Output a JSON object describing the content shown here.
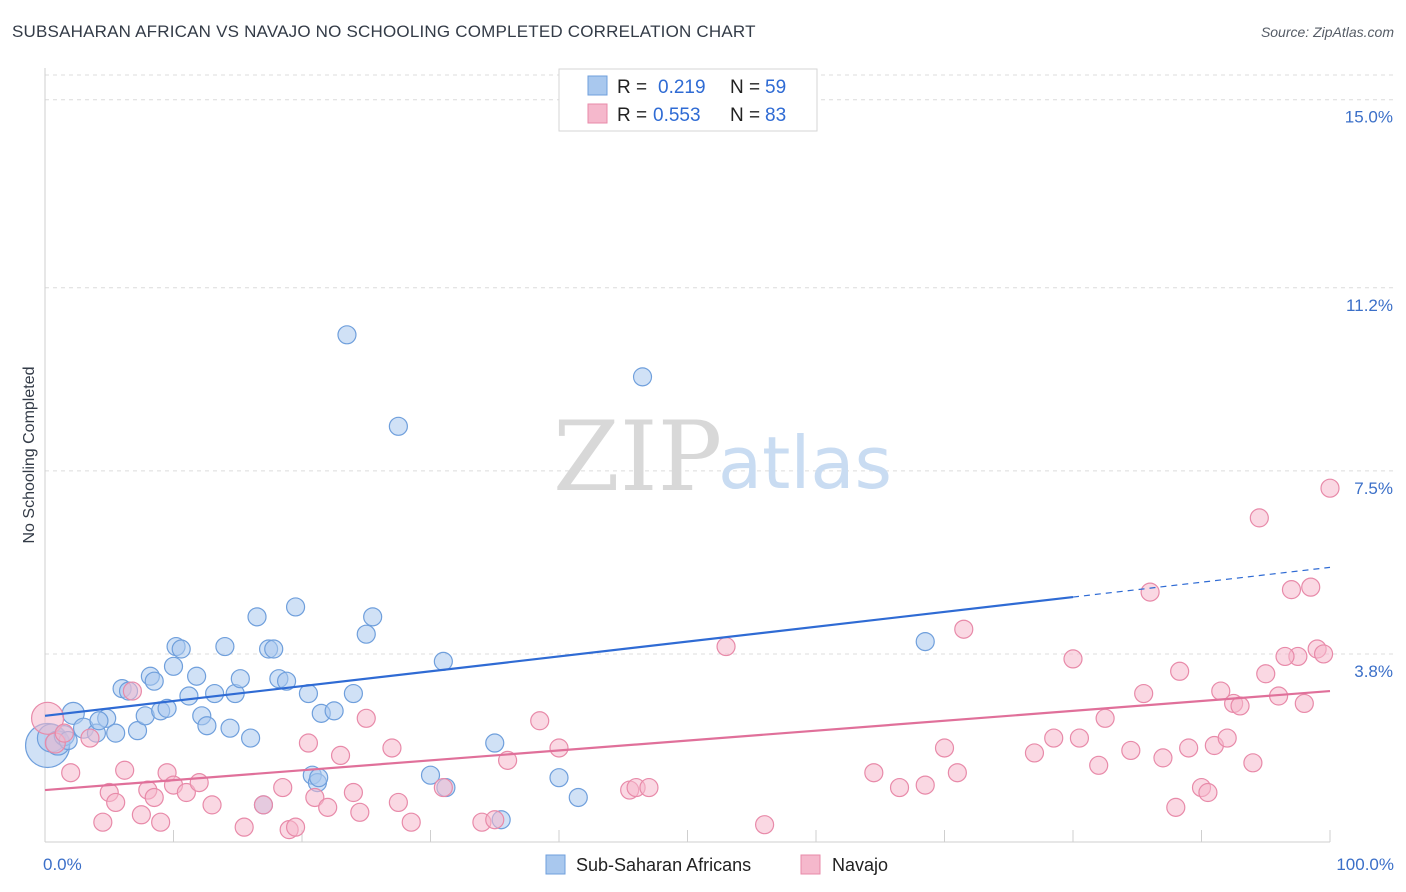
{
  "header": {
    "title": "SUBSAHARAN AFRICAN VS NAVAJO NO SCHOOLING COMPLETED CORRELATION CHART",
    "source": "Source: ZipAtlas.com"
  },
  "watermark": {
    "zip": "ZIP",
    "atlas": "atlas"
  },
  "legend": {
    "rows": [
      {
        "r_label": "R =",
        "r_value": "0.219",
        "n_label": "N =",
        "n_value": "59"
      },
      {
        "r_label": "R =",
        "r_value": "0.553",
        "n_label": "N =",
        "n_value": "83"
      }
    ]
  },
  "bottom_legend": [
    "Sub-Saharan Africans",
    "Navajo"
  ],
  "colors": {
    "blue_fill": "#a9c8ee",
    "blue_stroke": "#6f9fdc",
    "blue_line": "#2f6bd4",
    "pink_fill": "#f5b8cc",
    "pink_stroke": "#e88aa9",
    "pink_line": "#e0709a",
    "grid": "#dcdcdc",
    "tick_label": "#3b6fc8"
  },
  "chart_data": {
    "type": "scatter",
    "title": "SUBSAHARAN AFRICAN VS NAVAJO NO SCHOOLING COMPLETED CORRELATION CHART",
    "xlabel": "",
    "ylabel": "No Schooling Completed",
    "xlim": [
      0,
      100
    ],
    "ylim": [
      0,
      15.5
    ],
    "x_tick_labels": [
      "0.0%",
      "100.0%"
    ],
    "y_ticks": [
      3.8,
      7.5,
      11.2,
      15.0
    ],
    "y_tick_labels": [
      "3.8%",
      "7.5%",
      "11.2%",
      "15.0%"
    ],
    "grid": true,
    "series": [
      {
        "name": "Sub-Saharan Africans",
        "color": "blue",
        "trend": {
          "x0": 0,
          "y0": 2.55,
          "x1": 80,
          "y1": 4.95,
          "dash_to_x": 100,
          "dash_to_y": 5.55
        },
        "points": [
          [
            0.2,
            1.95,
            22
          ],
          [
            0.5,
            2.1,
            14
          ],
          [
            1.0,
            2.0,
            12
          ],
          [
            1.5,
            2.15,
            10
          ],
          [
            2.2,
            2.6,
            11
          ],
          [
            3.0,
            2.3,
            10
          ],
          [
            4.0,
            2.2,
            9
          ],
          [
            4.8,
            2.5,
            9
          ],
          [
            5.5,
            2.2,
            9
          ],
          [
            6.0,
            3.1,
            9
          ],
          [
            6.5,
            3.05,
            9
          ],
          [
            7.2,
            2.25,
            9
          ],
          [
            7.8,
            2.55,
            9
          ],
          [
            8.2,
            3.35,
            9
          ],
          [
            8.5,
            3.25,
            9
          ],
          [
            9.0,
            2.65,
            9
          ],
          [
            9.5,
            2.7,
            9
          ],
          [
            10.0,
            3.55,
            9
          ],
          [
            10.2,
            3.95,
            9
          ],
          [
            10.6,
            3.9,
            9
          ],
          [
            11.2,
            2.95,
            9
          ],
          [
            11.8,
            3.35,
            9
          ],
          [
            12.2,
            2.55,
            9
          ],
          [
            12.6,
            2.35,
            9
          ],
          [
            13.2,
            3.0,
            9
          ],
          [
            14.0,
            3.95,
            9
          ],
          [
            14.4,
            2.3,
            9
          ],
          [
            14.8,
            3.0,
            9
          ],
          [
            15.2,
            3.3,
            9
          ],
          [
            16.0,
            2.1,
            9
          ],
          [
            16.5,
            4.55,
            9
          ],
          [
            17.0,
            0.75,
            9
          ],
          [
            17.4,
            3.9,
            9
          ],
          [
            17.8,
            3.9,
            9
          ],
          [
            18.2,
            3.3,
            9
          ],
          [
            18.8,
            3.25,
            9
          ],
          [
            19.5,
            4.75,
            9
          ],
          [
            20.5,
            3.0,
            9
          ],
          [
            20.8,
            1.35,
            9
          ],
          [
            21.2,
            1.2,
            9
          ],
          [
            21.5,
            2.6,
            9
          ],
          [
            22.5,
            2.65,
            9
          ],
          [
            23.5,
            10.25,
            9
          ],
          [
            24.0,
            3.0,
            9
          ],
          [
            25.0,
            4.2,
            9
          ],
          [
            25.5,
            4.55,
            9
          ],
          [
            27.5,
            8.4,
            9
          ],
          [
            30.0,
            1.35,
            9
          ],
          [
            31.0,
            3.65,
            9
          ],
          [
            31.2,
            1.1,
            9
          ],
          [
            35.0,
            2.0,
            9
          ],
          [
            35.5,
            0.45,
            9
          ],
          [
            40.0,
            1.3,
            9
          ],
          [
            41.5,
            0.9,
            9
          ],
          [
            46.5,
            9.4,
            9
          ],
          [
            68.5,
            4.05,
            9
          ],
          [
            21.3,
            1.3,
            9
          ],
          [
            4.2,
            2.45,
            9
          ],
          [
            1.8,
            2.05,
            9
          ]
        ]
      },
      {
        "name": "Navajo",
        "color": "pink",
        "trend": {
          "x0": 0,
          "y0": 1.05,
          "x1": 100,
          "y1": 3.05
        },
        "points": [
          [
            0.2,
            2.5,
            16
          ],
          [
            0.8,
            2.0,
            10
          ],
          [
            1.5,
            2.2,
            9
          ],
          [
            2.0,
            1.4,
            9
          ],
          [
            3.5,
            2.1,
            9
          ],
          [
            4.5,
            0.4,
            9
          ],
          [
            5.0,
            1.0,
            9
          ],
          [
            5.5,
            0.8,
            9
          ],
          [
            6.2,
            1.45,
            9
          ],
          [
            6.8,
            3.05,
            9
          ],
          [
            7.5,
            0.55,
            9
          ],
          [
            8.0,
            1.05,
            9
          ],
          [
            8.5,
            0.9,
            9
          ],
          [
            9.0,
            0.4,
            9
          ],
          [
            9.5,
            1.4,
            9
          ],
          [
            10.0,
            1.15,
            9
          ],
          [
            11.0,
            1.0,
            9
          ],
          [
            12.0,
            1.2,
            9
          ],
          [
            13.0,
            0.75,
            9
          ],
          [
            15.5,
            0.3,
            9
          ],
          [
            17.0,
            0.75,
            9
          ],
          [
            18.5,
            1.1,
            9
          ],
          [
            19.0,
            0.25,
            9
          ],
          [
            19.5,
            0.3,
            9
          ],
          [
            20.5,
            2.0,
            9
          ],
          [
            21.0,
            0.9,
            9
          ],
          [
            22.0,
            0.7,
            9
          ],
          [
            23.0,
            1.75,
            9
          ],
          [
            24.0,
            1.0,
            9
          ],
          [
            24.5,
            0.6,
            9
          ],
          [
            25.0,
            2.5,
            9
          ],
          [
            27.0,
            1.9,
            9
          ],
          [
            27.5,
            0.8,
            9
          ],
          [
            28.5,
            0.4,
            9
          ],
          [
            31.0,
            1.1,
            9
          ],
          [
            34.0,
            0.4,
            9
          ],
          [
            35.0,
            0.45,
            9
          ],
          [
            36.0,
            1.65,
            9
          ],
          [
            38.5,
            2.45,
            9
          ],
          [
            40.0,
            1.9,
            9
          ],
          [
            45.5,
            1.05,
            9
          ],
          [
            46.0,
            1.1,
            9
          ],
          [
            47.0,
            1.1,
            9
          ],
          [
            53.0,
            3.95,
            9
          ],
          [
            56.0,
            0.35,
            9
          ],
          [
            64.5,
            1.4,
            9
          ],
          [
            66.5,
            1.1,
            9
          ],
          [
            68.5,
            1.15,
            9
          ],
          [
            70.0,
            1.9,
            9
          ],
          [
            71.0,
            1.4,
            9
          ],
          [
            71.5,
            4.3,
            9
          ],
          [
            77.0,
            1.8,
            9
          ],
          [
            78.5,
            2.1,
            9
          ],
          [
            80.0,
            3.7,
            9
          ],
          [
            82.0,
            1.55,
            9
          ],
          [
            82.5,
            2.5,
            9
          ],
          [
            84.5,
            1.85,
            9
          ],
          [
            85.5,
            3.0,
            9
          ],
          [
            86.0,
            5.05,
            9
          ],
          [
            87.0,
            1.7,
            9
          ],
          [
            88.0,
            0.7,
            9
          ],
          [
            88.3,
            3.45,
            9
          ],
          [
            89.0,
            1.9,
            9
          ],
          [
            90.0,
            1.1,
            9
          ],
          [
            90.5,
            1.0,
            9
          ],
          [
            91.0,
            1.95,
            9
          ],
          [
            91.5,
            3.05,
            9
          ],
          [
            92.0,
            2.1,
            9
          ],
          [
            92.5,
            2.8,
            9
          ],
          [
            93.0,
            2.75,
            9
          ],
          [
            94.0,
            1.6,
            9
          ],
          [
            94.5,
            6.55,
            9
          ],
          [
            95.0,
            3.4,
            9
          ],
          [
            96.0,
            2.95,
            9
          ],
          [
            97.0,
            5.1,
            9
          ],
          [
            97.5,
            3.75,
            9
          ],
          [
            98.0,
            2.8,
            9
          ],
          [
            98.5,
            5.15,
            9
          ],
          [
            99.0,
            3.9,
            9
          ],
          [
            99.5,
            3.8,
            9
          ],
          [
            100.0,
            7.15,
            9
          ],
          [
            96.5,
            3.75,
            9
          ],
          [
            80.5,
            2.1,
            9
          ]
        ]
      }
    ]
  }
}
